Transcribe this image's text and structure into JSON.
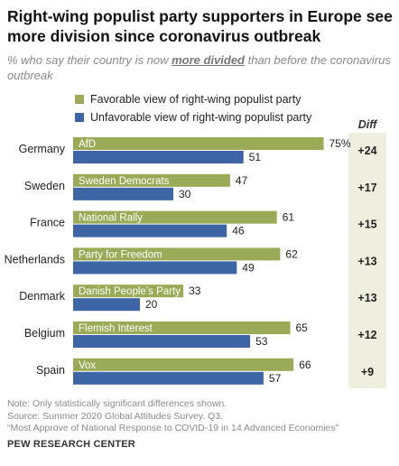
{
  "title": "Right-wing populist party supporters in Europe see more division since coronavirus outbreak",
  "subtitle": {
    "before": "% who say their country is now ",
    "emphasis": "more divided",
    "after": " than before the coronavirus outbreak"
  },
  "diff_header": "Diff",
  "notes": [
    "Note: Only statistically significant differences shown.",
    "Source: Summer 2020 Global Attitudes Survey. Q3.",
    "“Most Approve of National Response to COVID-19 in 14 Advanced Economies”"
  ],
  "brand": "PEW RESEARCH CENTER",
  "colors": {
    "favorable": "#9aaa57",
    "unfavorable": "#3d64a5",
    "diff_bg": "#efefe0"
  },
  "chart_data": {
    "type": "bar",
    "orientation": "horizontal",
    "categories": [
      "Germany",
      "Sweden",
      "France",
      "Netherlands",
      "Denmark",
      "Belgium",
      "Spain"
    ],
    "party_labels": [
      "AfD",
      "Sweden Democrats",
      "National Rally",
      "Party for Freedom",
      "Danish People’s Party",
      "Flemish Interest",
      "Vox"
    ],
    "series": [
      {
        "name": "Favorable view of right-wing populist party",
        "values": [
          75,
          47,
          61,
          62,
          33,
          65,
          66
        ],
        "value_labels": [
          "75%",
          "47",
          "61",
          "62",
          "33",
          "65",
          "66"
        ]
      },
      {
        "name": "Unfavorable view of right-wing populist party",
        "values": [
          51,
          30,
          46,
          49,
          20,
          53,
          57
        ],
        "value_labels": [
          "51",
          "30",
          "46",
          "49",
          "20",
          "53",
          "57"
        ]
      }
    ],
    "diff": [
      "+24",
      "+17",
      "+15",
      "+13",
      "+13",
      "+12",
      "+9"
    ],
    "xlim": [
      0,
      100
    ],
    "legend_position": "top-left",
    "grid": false
  }
}
